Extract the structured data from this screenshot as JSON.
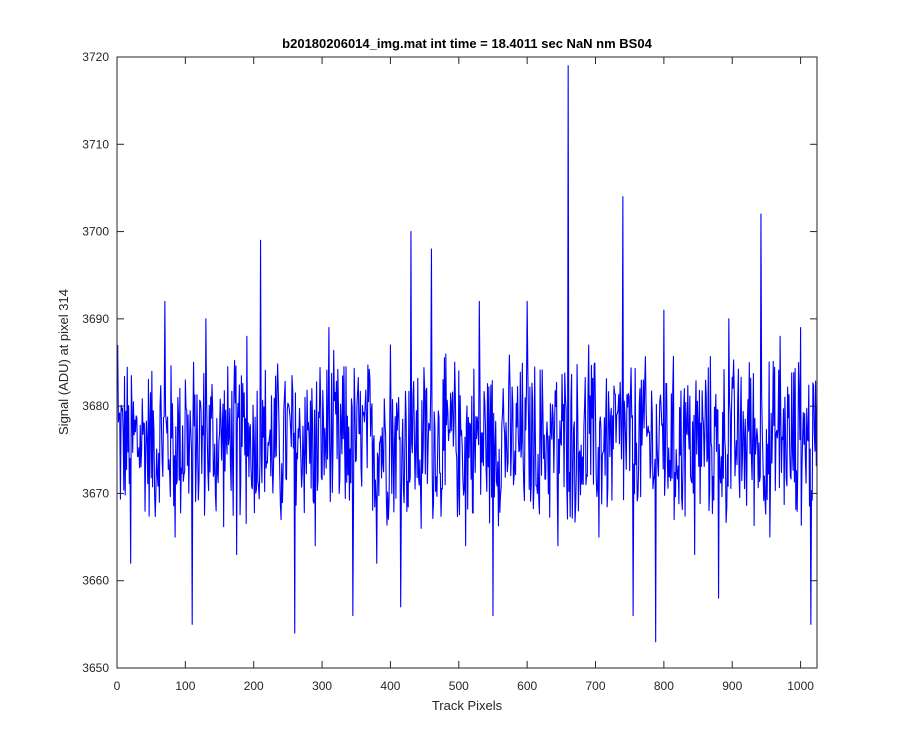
{
  "chart_data": {
    "type": "line",
    "title": "b20180206014_img.mat int time = 18.4011 sec  NaN nm BS04",
    "xlabel": "Track Pixels",
    "ylabel": "Signal (ADU) at pixel 314",
    "xlim": [
      0,
      1024
    ],
    "ylim": [
      3650,
      3720
    ],
    "xticks": [
      0,
      100,
      200,
      300,
      400,
      500,
      600,
      700,
      800,
      900,
      1000
    ],
    "yticks": [
      3650,
      3660,
      3670,
      3680,
      3690,
      3700,
      3710,
      3720
    ],
    "grid": false,
    "legend": "none",
    "series": [
      {
        "color": "#0000ff",
        "x": [
          1,
          20,
          40,
          55,
          70,
          85,
          100,
          110,
          130,
          145,
          160,
          175,
          190,
          210,
          225,
          240,
          260,
          275,
          290,
          310,
          325,
          345,
          360,
          380,
          400,
          415,
          430,
          445,
          460,
          480,
          495,
          510,
          530,
          550,
          565,
          580,
          600,
          615,
          630,
          645,
          660,
          675,
          690,
          705,
          720,
          740,
          755,
          770,
          788,
          800,
          815,
          830,
          845,
          860,
          880,
          895,
          910,
          925,
          942,
          955,
          970,
          985,
          1000,
          1015,
          1024
        ],
        "y": [
          3687,
          3662,
          3678,
          3670,
          3692,
          3665,
          3683,
          3655,
          3690,
          3668,
          3676,
          3663,
          3688,
          3699,
          3672,
          3667,
          3654,
          3681,
          3664,
          3689,
          3670,
          3656,
          3679,
          3662,
          3687,
          3657,
          3700,
          3666,
          3698,
          3671,
          3681,
          3664,
          3692,
          3656,
          3682,
          3671,
          3692,
          3670,
          3676,
          3664,
          3719,
          3668,
          3687,
          3665,
          3679,
          3704,
          3656,
          3683,
          3653,
          3691,
          3667,
          3682,
          3663,
          3677,
          3658,
          3690,
          3672,
          3685,
          3702,
          3665,
          3688,
          3672,
          3689,
          3655,
          3680
        ]
      }
    ]
  }
}
